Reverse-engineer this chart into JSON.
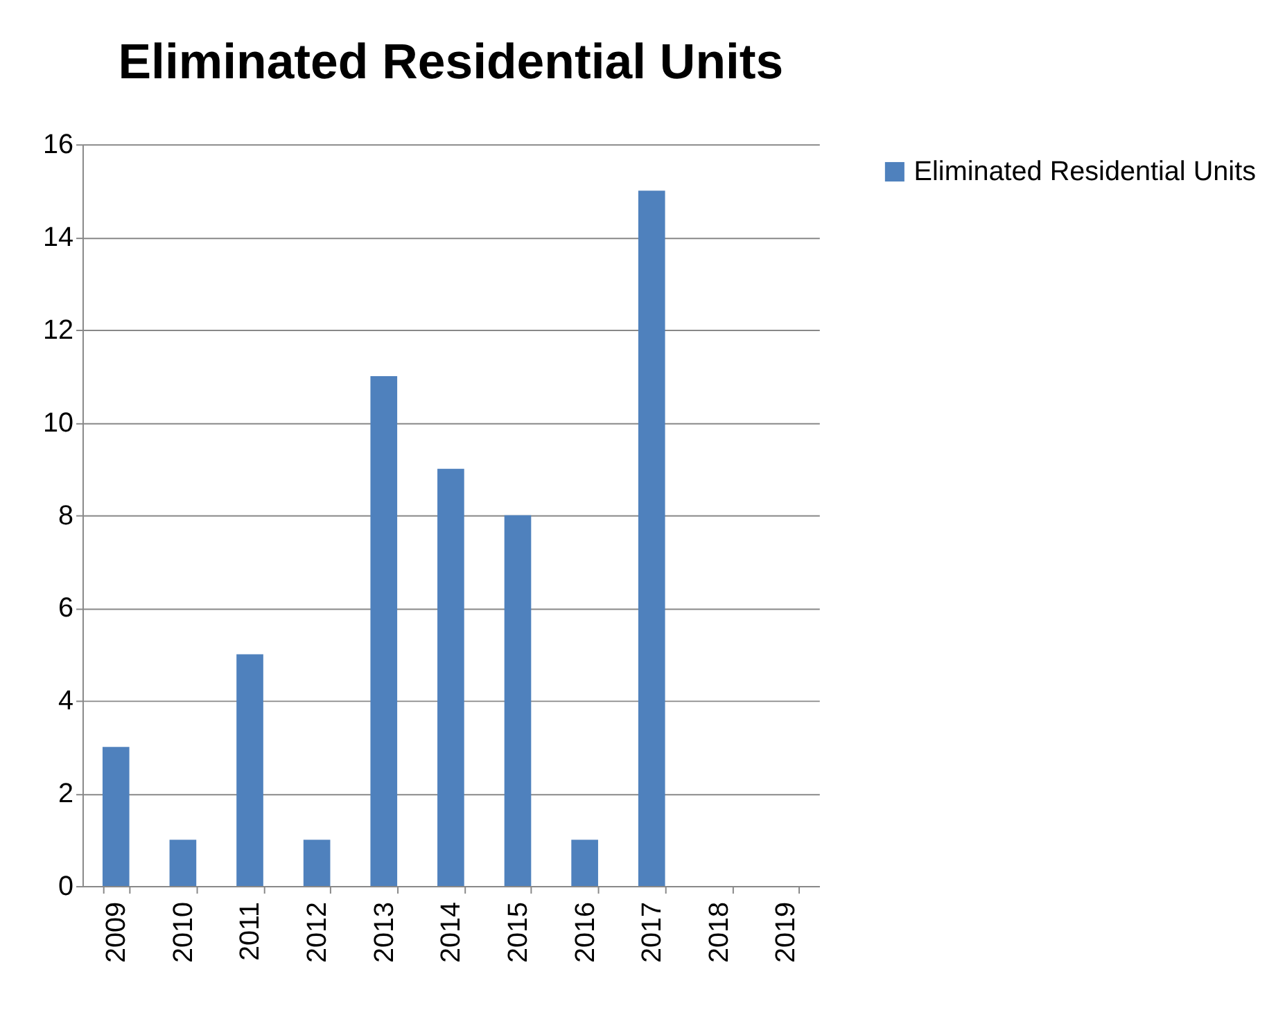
{
  "chart_data": {
    "type": "bar",
    "title": "Eliminated Residential Units",
    "categories": [
      "2009",
      "2010",
      "2011",
      "2012",
      "2013",
      "2014",
      "2015",
      "2016",
      "2017",
      "2018",
      "2019"
    ],
    "series": [
      {
        "name": "Eliminated Residential Units",
        "color": "#4f81bd",
        "values": [
          3,
          1,
          5,
          1,
          11,
          9,
          8,
          1,
          15,
          0,
          0
        ]
      }
    ],
    "ylim": [
      0,
      16
    ],
    "yticks": [
      0,
      2,
      4,
      6,
      8,
      10,
      12,
      14,
      16
    ],
    "grid": "y",
    "legend": "right"
  }
}
